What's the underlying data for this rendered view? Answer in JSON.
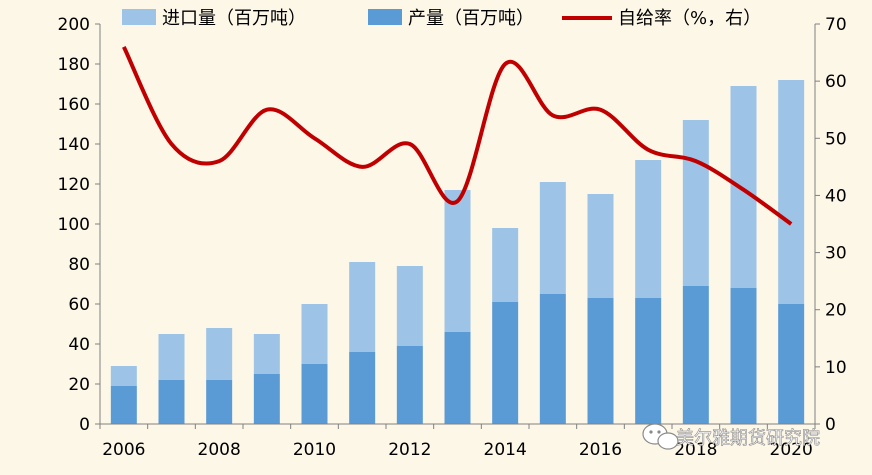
{
  "chart_data": {
    "type": "bar",
    "categories": [
      "2006",
      "2007",
      "2008",
      "2009",
      "2010",
      "2011",
      "2012",
      "2013",
      "2014",
      "2015",
      "2016",
      "2017",
      "2018",
      "2019",
      "2020"
    ],
    "x_tick_labels": [
      "2006",
      "2008",
      "2010",
      "2012",
      "2014",
      "2016",
      "2018",
      "2020"
    ],
    "stacked": true,
    "series": [
      {
        "name": "产量（百万吨）",
        "kind": "bar",
        "axis": "left",
        "color": "#5b9bd5",
        "values": [
          19,
          22,
          22,
          25,
          30,
          36,
          39,
          46,
          61,
          65,
          63,
          63,
          69,
          68,
          60
        ]
      },
      {
        "name": "进口量（百万吨）",
        "kind": "bar",
        "axis": "left",
        "color": "#9dc3e6",
        "values": [
          10,
          23,
          26,
          20,
          30,
          45,
          40,
          71,
          37,
          56,
          52,
          69,
          83,
          101,
          112
        ]
      },
      {
        "name": "自给率（%，右）",
        "kind": "line",
        "axis": "right",
        "color": "#c00000",
        "values": [
          66,
          49,
          46,
          55,
          50,
          45,
          49,
          39,
          63,
          54,
          55,
          48,
          46,
          41,
          35
        ]
      }
    ],
    "y_left": {
      "min": 0,
      "max": 200,
      "ticks": [
        0,
        20,
        40,
        60,
        80,
        100,
        120,
        140,
        160,
        180,
        200
      ]
    },
    "y_right": {
      "min": 0,
      "max": 70,
      "ticks": [
        0,
        10,
        20,
        30,
        40,
        50,
        60,
        70
      ]
    },
    "legend_position": "top",
    "grid": false
  },
  "watermark": {
    "text": "美尔雅期货研究院",
    "icon": "wechat-icon"
  }
}
